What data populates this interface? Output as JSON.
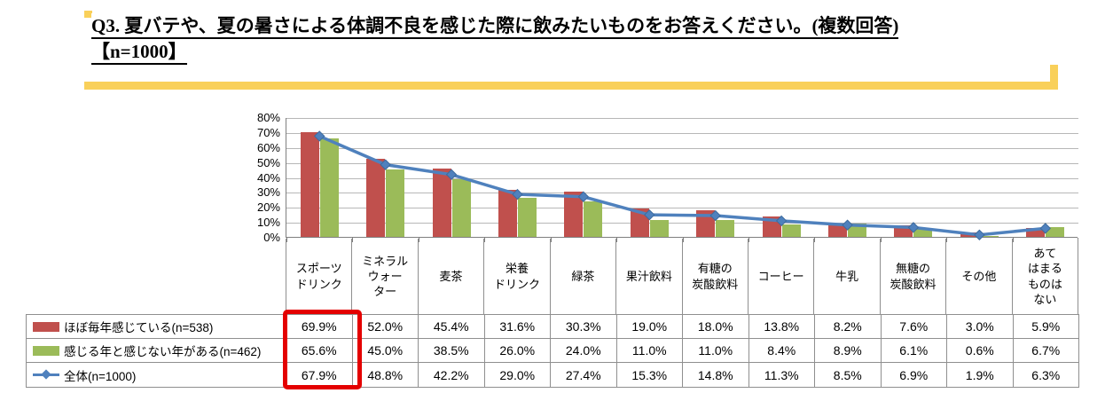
{
  "title": {
    "line1": "Q3. 夏バテや、夏の暑さによる体調不良を感じた際に飲みたいものをお答えください。(複数回答)",
    "line2": "【n=1000】"
  },
  "colors": {
    "bar_red": "#c0504d",
    "bar_green": "#9bbb59",
    "line_blue": "#4f81bd",
    "line_blue_dark": "#3d6b9e",
    "highlight_red": "#e40000",
    "accent_yellow": "#f9d05a",
    "gridline_gray": "#b7b7b7",
    "table_border_gray": "#8f8f8f"
  },
  "chart_data": {
    "type": "bar",
    "subtype": "grouped bars with overlaid line series",
    "categories": [
      "スポーツドリンク",
      "ミネラルウォーター",
      "麦茶",
      "栄養ドリンク",
      "緑茶",
      "果汁飲料",
      "有糖の炭酸飲料",
      "コーヒー",
      "牛乳",
      "無糖の炭酸飲料",
      "その他",
      "あてはまるものはない"
    ],
    "categories_display": [
      "スポーツ\nドリンク",
      "ミネラル\nウォー\nター",
      "麦茶",
      "栄養\nドリンク",
      "緑茶",
      "果汁飲料",
      "有糖の\n炭酸飲料",
      "コーヒー",
      "牛乳",
      "無糖の\n炭酸飲料",
      "その他",
      "あて\nはまる\nものは\nない"
    ],
    "series": [
      {
        "name": "ほぼ毎年感じている(n=538)",
        "type": "bar",
        "color": "#c0504d",
        "values": [
          69.9,
          52.0,
          45.4,
          31.6,
          30.3,
          19.0,
          18.0,
          13.8,
          8.2,
          7.6,
          3.0,
          5.9
        ]
      },
      {
        "name": "感じる年と感じない年がある(n=462)",
        "type": "bar",
        "color": "#9bbb59",
        "values": [
          65.6,
          45.0,
          38.5,
          26.0,
          24.0,
          11.0,
          11.0,
          8.4,
          8.9,
          6.1,
          0.6,
          6.7
        ]
      },
      {
        "name": "全体(n=1000)",
        "type": "line",
        "color": "#4f81bd",
        "values": [
          67.9,
          48.8,
          42.2,
          29.0,
          27.4,
          15.3,
          14.8,
          11.3,
          8.5,
          6.9,
          1.9,
          6.3
        ]
      }
    ],
    "ylim": [
      0,
      80
    ],
    "ytick_step": 10,
    "ytick_labels": [
      "0%",
      "10%",
      "20%",
      "30%",
      "40%",
      "50%",
      "60%",
      "70%",
      "80%"
    ],
    "grid": true,
    "legend_position": "table-left",
    "value_suffix": "%",
    "highlighted_column": 0
  }
}
